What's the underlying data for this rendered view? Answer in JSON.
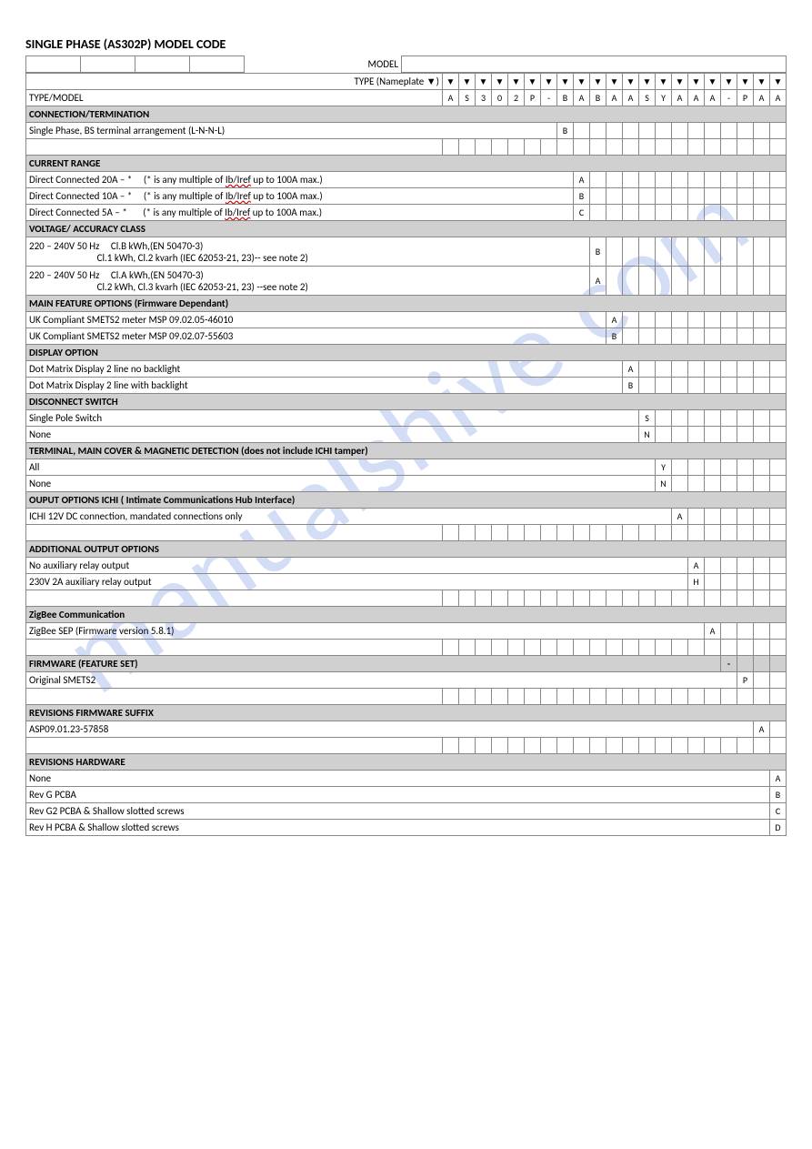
{
  "title": "SINGLE PHASE (AS302P) MODEL CODE",
  "watermark": "manualshive.com",
  "labels": {
    "model": "MODEL",
    "type": "TYPE (Nameplate ▼)"
  },
  "arrow": "▼",
  "code_row": [
    "A",
    "S",
    "3",
    "0",
    "2",
    "P",
    "-",
    "B",
    "A",
    "B",
    "A",
    "A",
    "S",
    "Y",
    "A",
    "A",
    "A",
    "-",
    "P",
    "A",
    "A"
  ],
  "sections": [
    {
      "header": "TYPE/MODEL",
      "rows": []
    },
    {
      "header": "CONNECTION/TERMINATION",
      "rows": [
        {
          "desc": "Single Phase, BS terminal arrangement (L-N-N-L)",
          "col": 7,
          "val": "B"
        }
      ]
    },
    {
      "spacer": true
    },
    {
      "header": "CURRENT RANGE",
      "rows": [
        {
          "desc_html": "Direct Connected 20A – *&nbsp;&nbsp;&nbsp;&nbsp;&nbsp;(* is any multiple of <span class='redund'>Ib/Iref</span> up to 100A max.)",
          "col": 8,
          "val": "A"
        },
        {
          "desc_html": "Direct Connected 10A – *&nbsp;&nbsp;&nbsp;&nbsp;&nbsp;(* is any multiple of <span class='redund'>Ib/Iref</span> up to 100A max.)",
          "col": 8,
          "val": "B"
        },
        {
          "desc_html": "Direct Connected 5A – *&nbsp;&nbsp;&nbsp;&nbsp;&nbsp;&nbsp;&nbsp;(* is any multiple of <span class='redund'>Ib/Iref</span> up to 100A max.)",
          "col": 8,
          "val": "C"
        }
      ]
    },
    {
      "header": "VOLTAGE/ ACCURACY CLASS",
      "rows": [
        {
          "desc_html": "220 – 240V 50 Hz&nbsp;&nbsp;&nbsp;&nbsp;&nbsp;Cl.B kWh,(EN 50470-3)<br>&nbsp;&nbsp;&nbsp;&nbsp;&nbsp;&nbsp;&nbsp;&nbsp;&nbsp;&nbsp;&nbsp;&nbsp;&nbsp;&nbsp;&nbsp;&nbsp;&nbsp;&nbsp;&nbsp;&nbsp;&nbsp;&nbsp;&nbsp;&nbsp;&nbsp;&nbsp;&nbsp;&nbsp;&nbsp;&nbsp;Cl.1 kWh, Cl.2 kvarh (IEC 62053-21, 23)-- see note 2)",
          "col": 9,
          "val": "B",
          "tall": true
        },
        {
          "desc_html": "220 – 240V 50 Hz&nbsp;&nbsp;&nbsp;&nbsp;&nbsp;Cl.A kWh,(EN 50470-3)<br>&nbsp;&nbsp;&nbsp;&nbsp;&nbsp;&nbsp;&nbsp;&nbsp;&nbsp;&nbsp;&nbsp;&nbsp;&nbsp;&nbsp;&nbsp;&nbsp;&nbsp;&nbsp;&nbsp;&nbsp;&nbsp;&nbsp;&nbsp;&nbsp;&nbsp;&nbsp;&nbsp;&nbsp;&nbsp;&nbsp;Cl.2 kWh, Cl.3 kvarh (IEC 62053-21, 23) --see note 2)",
          "col": 9,
          "val": "A",
          "tall": true
        }
      ]
    },
    {
      "header": "MAIN FEATURE OPTIONS (Firmware Dependant)",
      "rows": [
        {
          "desc": "UK Compliant SMETS2 meter MSP 09.02.05-46010",
          "col": 10,
          "val": "A"
        },
        {
          "desc": "UK Compliant SMETS2 meter MSP 09.02.07-55603",
          "col": 10,
          "val": "B"
        }
      ]
    },
    {
      "header": "DISPLAY  OPTION",
      "rows": [
        {
          "desc": "Dot Matrix Display 2 line no backlight",
          "col": 11,
          "val": "A"
        },
        {
          "desc": "Dot Matrix Display 2 line with backlight",
          "col": 11,
          "val": "B"
        }
      ]
    },
    {
      "header": "DISCONNECT SWITCH",
      "rows": [
        {
          "desc": "Single  Pole Switch",
          "col": 12,
          "val": "S"
        },
        {
          "desc": "None",
          "col": 12,
          "val": "N"
        }
      ]
    },
    {
      "header": "TERMINAL, MAIN COVER & MAGNETIC DETECTION (does not include ICHI tamper)",
      "rows": [
        {
          "desc": "All",
          "col": 13,
          "val": "Y"
        },
        {
          "desc": "None",
          "col": 13,
          "val": "N"
        }
      ]
    },
    {
      "header": "OUPUT OPTIONS ICHI ( Intimate Communications Hub Interface)",
      "rows": [
        {
          "desc": "ICHI 12V DC connection, mandated connections only",
          "col": 14,
          "val": "A"
        }
      ]
    },
    {
      "spacer": true
    },
    {
      "header": "ADDITIONAL OUTPUT OPTIONS",
      "rows": [
        {
          "desc": "No auxiliary relay output",
          "col": 15,
          "val": "A"
        },
        {
          "desc": "230V 2A auxiliary relay output",
          "col": 15,
          "val": "H"
        }
      ]
    },
    {
      "spacer": true
    },
    {
      "header": "ZigBee Communication",
      "rows": [
        {
          "desc": "ZigBee SEP (Firmware version 5.8.1)",
          "col": 16,
          "val": "A"
        }
      ]
    },
    {
      "spacer": true
    },
    {
      "header": "FIRMWARE (FEATURE SET)",
      "header_col": 17,
      "header_val": "-",
      "rows": [
        {
          "desc": "Original SMETS2",
          "col": 18,
          "val": "P"
        }
      ]
    },
    {
      "spacer": true
    },
    {
      "header": "REVISIONS FIRMWARE SUFFIX",
      "rows": [
        {
          "desc": "ASP09.01.23-57858",
          "col": 19,
          "val": "A"
        }
      ]
    },
    {
      "spacer": true
    },
    {
      "header": "REVISIONS HARDWARE",
      "rows": [
        {
          "desc": "None",
          "col": 20,
          "val": "A"
        },
        {
          "desc": "Rev G PCBA",
          "col": 20,
          "val": "B"
        },
        {
          "desc": "Rev G2 PCBA & Shallow slotted screws",
          "col": 20,
          "val": "C"
        },
        {
          "desc": "Rev H PCBA & Shallow slotted screws",
          "col": 20,
          "val": "D"
        }
      ]
    }
  ],
  "colors": {
    "header_bg": "#d0d0d0",
    "border": "#888888",
    "watermark": "rgba(80,120,220,0.25)",
    "bg": "#ffffff"
  }
}
